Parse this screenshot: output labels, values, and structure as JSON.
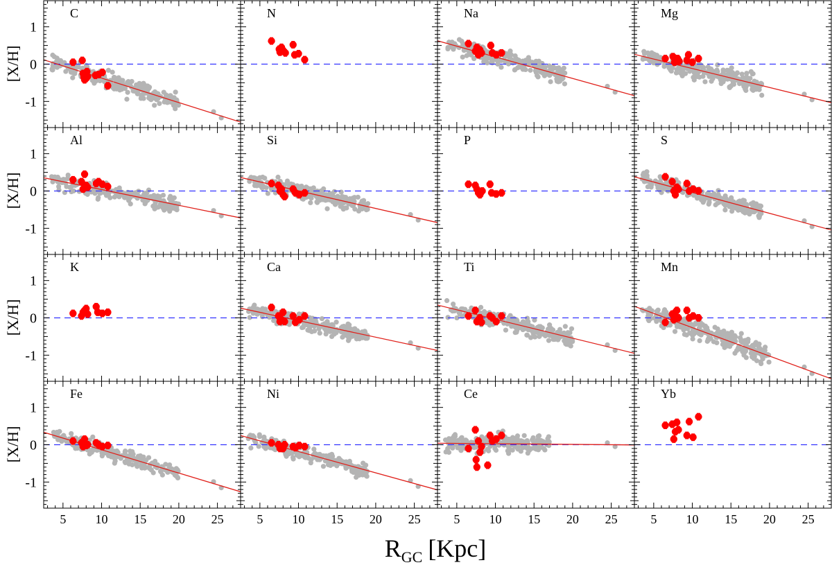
{
  "chart_data": {
    "type": "scatter",
    "grid": "4x4",
    "xlabel_main": "R",
    "xlabel_sub": "GC",
    "xlabel_unit": "[Kpc]",
    "ylabel": "[X/H]",
    "xlim": [
      2.5,
      28
    ],
    "ylim": [
      -1.7,
      1.7
    ],
    "xticks": [
      5,
      10,
      15,
      20,
      25
    ],
    "yticks": [
      -1,
      0,
      1
    ],
    "xtick_labels": [
      "5",
      "10",
      "15",
      "20",
      "25"
    ],
    "ytick_labels": [
      "-1",
      "0",
      "1"
    ],
    "reference_line": {
      "y": 0,
      "style": "dashed",
      "color": "#3333ff"
    },
    "colors": {
      "background_stars": "#b4b4b4",
      "sample_stars": "#ff0000",
      "fit_line": "#e0201a",
      "reference": "#3333ff"
    },
    "panels": [
      {
        "element": "C",
        "fit": {
          "slope": -0.0655,
          "intercept": 0.28
        },
        "has_cloud": true,
        "cloud_xmax": 20,
        "cloud_scatter": 0.18,
        "red_points": [
          [
            6.3,
            0.05
          ],
          [
            7.5,
            0.1
          ],
          [
            7.6,
            -0.25
          ],
          [
            7.7,
            -0.35
          ],
          [
            7.8,
            -0.42
          ],
          [
            7.9,
            -0.3
          ],
          [
            8.0,
            -0.38
          ],
          [
            8.1,
            -0.2
          ],
          [
            8.2,
            -0.33
          ],
          [
            9.2,
            -0.3
          ],
          [
            9.6,
            -0.28
          ],
          [
            10.1,
            -0.22
          ],
          [
            10.8,
            -0.58
          ]
        ]
      },
      {
        "element": "N",
        "fit": null,
        "has_cloud": false,
        "red_points": [
          [
            6.5,
            0.62
          ],
          [
            7.5,
            0.4
          ],
          [
            7.6,
            0.32
          ],
          [
            7.8,
            0.45
          ],
          [
            8.0,
            0.37
          ],
          [
            8.3,
            0.3
          ],
          [
            9.3,
            0.52
          ],
          [
            9.5,
            0.25
          ],
          [
            10.0,
            0.28
          ],
          [
            10.8,
            0.12
          ]
        ]
      },
      {
        "element": "Na",
        "fit": {
          "slope": -0.0577,
          "intercept": 0.77
        },
        "has_cloud": true,
        "cloud_xmax": 19,
        "cloud_scatter": 0.18,
        "red_points": [
          [
            6.5,
            0.55
          ],
          [
            7.4,
            0.35
          ],
          [
            7.6,
            0.45
          ],
          [
            7.8,
            0.25
          ],
          [
            8.0,
            0.38
          ],
          [
            8.2,
            0.3
          ],
          [
            9.4,
            0.5
          ],
          [
            9.6,
            0.3
          ],
          [
            10.1,
            0.25
          ],
          [
            10.8,
            0.3
          ]
        ]
      },
      {
        "element": "Mg",
        "fit": {
          "slope": -0.0508,
          "intercept": 0.39
        },
        "has_cloud": true,
        "cloud_xmax": 19,
        "cloud_scatter": 0.18,
        "red_points": [
          [
            6.5,
            0.15
          ],
          [
            7.5,
            0.2
          ],
          [
            7.7,
            0.05
          ],
          [
            7.9,
            0.1
          ],
          [
            8.1,
            0.15
          ],
          [
            8.3,
            0.08
          ],
          [
            9.3,
            0.1
          ],
          [
            9.5,
            0.25
          ],
          [
            10.0,
            0.05
          ],
          [
            10.8,
            0.15
          ]
        ]
      },
      {
        "element": "Al",
        "fit": {
          "slope": -0.0422,
          "intercept": 0.46
        },
        "has_cloud": true,
        "cloud_xmax": 20,
        "cloud_scatter": 0.17,
        "red_points": [
          [
            6.3,
            0.3
          ],
          [
            7.4,
            0.25
          ],
          [
            7.6,
            0.05
          ],
          [
            7.8,
            0.45
          ],
          [
            8.0,
            0.15
          ],
          [
            8.2,
            0.1
          ],
          [
            9.3,
            0.2
          ],
          [
            9.6,
            0.25
          ],
          [
            10.1,
            0.18
          ],
          [
            10.8,
            0.12
          ]
        ]
      },
      {
        "element": "Si",
        "fit": {
          "slope": -0.0474,
          "intercept": 0.48
        },
        "has_cloud": true,
        "cloud_xmax": 19,
        "cloud_scatter": 0.15,
        "red_points": [
          [
            6.5,
            0.2
          ],
          [
            7.4,
            0.15
          ],
          [
            7.6,
            0.0
          ],
          [
            7.8,
            0.05
          ],
          [
            8.0,
            -0.1
          ],
          [
            8.2,
            -0.15
          ],
          [
            9.3,
            0.05
          ],
          [
            9.6,
            -0.05
          ],
          [
            10.1,
            -0.1
          ],
          [
            10.8,
            -0.05
          ]
        ]
      },
      {
        "element": "P",
        "fit": null,
        "has_cloud": false,
        "red_points": [
          [
            6.5,
            0.18
          ],
          [
            7.4,
            0.15
          ],
          [
            7.6,
            0.05
          ],
          [
            7.8,
            -0.05
          ],
          [
            8.0,
            -0.1
          ],
          [
            8.3,
            0.0
          ],
          [
            9.3,
            0.18
          ],
          [
            9.5,
            -0.05
          ],
          [
            10.1,
            -0.08
          ],
          [
            10.8,
            -0.05
          ]
        ]
      },
      {
        "element": "S",
        "fit": {
          "slope": -0.0559,
          "intercept": 0.52
        },
        "has_cloud": true,
        "cloud_xmax": 19,
        "cloud_scatter": 0.16,
        "red_points": [
          [
            6.5,
            0.38
          ],
          [
            7.4,
            0.25
          ],
          [
            7.6,
            0.0
          ],
          [
            7.8,
            -0.1
          ],
          [
            8.0,
            0.1
          ],
          [
            8.2,
            0.05
          ],
          [
            9.3,
            0.2
          ],
          [
            9.6,
            0.0
          ],
          [
            10.1,
            0.05
          ],
          [
            10.8,
            0.0
          ]
        ]
      },
      {
        "element": "K",
        "fit": null,
        "has_cloud": false,
        "red_points": [
          [
            6.3,
            0.12
          ],
          [
            7.4,
            0.05
          ],
          [
            7.6,
            0.15
          ],
          [
            7.8,
            0.2
          ],
          [
            8.0,
            0.25
          ],
          [
            8.2,
            0.1
          ],
          [
            9.3,
            0.3
          ],
          [
            9.5,
            0.15
          ],
          [
            10.1,
            0.12
          ],
          [
            10.8,
            0.15
          ]
        ]
      },
      {
        "element": "Ca",
        "fit": {
          "slope": -0.0444,
          "intercept": 0.37
        },
        "has_cloud": true,
        "cloud_xmax": 19,
        "cloud_scatter": 0.15,
        "red_points": [
          [
            6.5,
            0.28
          ],
          [
            7.4,
            0.05
          ],
          [
            7.6,
            -0.1
          ],
          [
            7.8,
            -0.05
          ],
          [
            8.0,
            0.15
          ],
          [
            8.2,
            -0.1
          ],
          [
            9.3,
            0.05
          ],
          [
            9.6,
            -0.12
          ],
          [
            10.1,
            -0.05
          ],
          [
            10.8,
            0.05
          ]
        ]
      },
      {
        "element": "Ti",
        "fit": {
          "slope": -0.0507,
          "intercept": 0.47
        },
        "has_cloud": true,
        "cloud_xmax": 20,
        "cloud_scatter": 0.16,
        "red_points": [
          [
            6.5,
            0.05
          ],
          [
            7.4,
            0.2
          ],
          [
            7.6,
            -0.1
          ],
          [
            7.8,
            -0.05
          ],
          [
            8.0,
            0.0
          ],
          [
            8.2,
            -0.12
          ],
          [
            9.3,
            0.05
          ],
          [
            9.6,
            0.0
          ],
          [
            10.1,
            -0.1
          ],
          [
            10.8,
            0.05
          ]
        ]
      },
      {
        "element": "Mn",
        "fit": {
          "slope": -0.0762,
          "intercept": 0.5
        },
        "has_cloud": true,
        "cloud_xmax": 20,
        "cloud_scatter": 0.2,
        "red_points": [
          [
            6.5,
            -0.12
          ],
          [
            7.4,
            0.1
          ],
          [
            7.6,
            -0.05
          ],
          [
            7.8,
            0.15
          ],
          [
            8.0,
            0.2
          ],
          [
            8.2,
            0.0
          ],
          [
            9.3,
            0.2
          ],
          [
            9.6,
            0.0
          ],
          [
            10.1,
            0.05
          ],
          [
            10.8,
            0.0
          ]
        ]
      },
      {
        "element": "Fe",
        "fit": {
          "slope": -0.0625,
          "intercept": 0.49
        },
        "has_cloud": true,
        "cloud_xmax": 20,
        "cloud_scatter": 0.15,
        "red_points": [
          [
            6.3,
            0.1
          ],
          [
            7.4,
            0.05
          ],
          [
            7.6,
            -0.05
          ],
          [
            7.8,
            0.15
          ],
          [
            8.0,
            -0.02
          ],
          [
            8.2,
            0.0
          ],
          [
            9.3,
            0.05
          ],
          [
            9.6,
            0.0
          ],
          [
            10.1,
            -0.05
          ],
          [
            10.8,
            -0.02
          ]
        ]
      },
      {
        "element": "Ni",
        "fit": {
          "slope": -0.0572,
          "intercept": 0.39
        },
        "has_cloud": true,
        "cloud_xmax": 19,
        "cloud_scatter": 0.14,
        "red_points": [
          [
            6.5,
            0.05
          ],
          [
            7.4,
            0.0
          ],
          [
            7.6,
            -0.1
          ],
          [
            7.8,
            -0.05
          ],
          [
            8.0,
            -0.1
          ],
          [
            8.2,
            0.0
          ],
          [
            9.3,
            -0.05
          ],
          [
            9.6,
            -0.08
          ],
          [
            10.1,
            -0.02
          ],
          [
            10.8,
            -0.05
          ]
        ]
      },
      {
        "element": "Ce",
        "fit": {
          "slope": -0.0018,
          "intercept": 0.045
        },
        "has_cloud": true,
        "cloud_xmax": 17,
        "cloud_scatter": 0.17,
        "red_points": [
          [
            6.5,
            -0.1
          ],
          [
            7.4,
            0.4
          ],
          [
            7.5,
            -0.4
          ],
          [
            7.6,
            -0.6
          ],
          [
            7.8,
            0.1
          ],
          [
            8.0,
            -0.2
          ],
          [
            8.2,
            -0.05
          ],
          [
            9.0,
            -0.55
          ],
          [
            9.3,
            0.25
          ],
          [
            9.6,
            0.1
          ],
          [
            10.1,
            0.15
          ],
          [
            10.8,
            0.25
          ]
        ]
      },
      {
        "element": "Yb",
        "fit": null,
        "has_cloud": false,
        "red_points": [
          [
            6.5,
            0.52
          ],
          [
            7.4,
            0.55
          ],
          [
            7.6,
            0.15
          ],
          [
            7.8,
            0.35
          ],
          [
            8.0,
            0.6
          ],
          [
            8.2,
            0.4
          ],
          [
            9.3,
            0.25
          ],
          [
            9.6,
            0.62
          ],
          [
            10.1,
            0.2
          ],
          [
            10.8,
            0.75
          ]
        ]
      }
    ]
  }
}
